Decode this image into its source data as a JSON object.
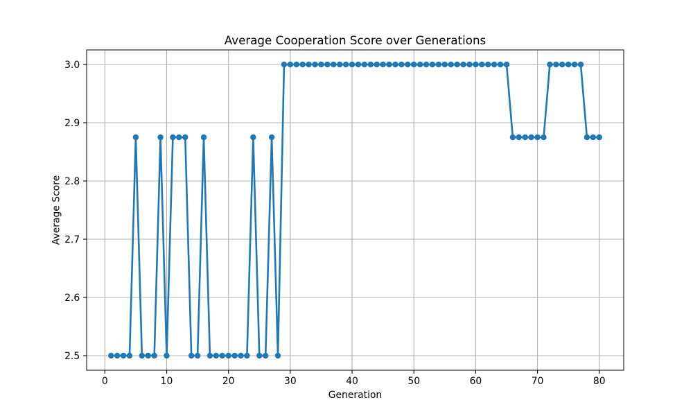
{
  "chart_data": {
    "type": "line",
    "title": "Average Cooperation Score over Generations",
    "xlabel": "Generation",
    "ylabel": "Average Score",
    "xlim": [
      -2.95,
      83.95
    ],
    "ylim": [
      2.475,
      3.025
    ],
    "xticks": [
      0,
      10,
      20,
      30,
      40,
      50,
      60,
      70,
      80
    ],
    "xtick_labels": [
      "0",
      "10",
      "20",
      "30",
      "40",
      "50",
      "60",
      "70",
      "80"
    ],
    "yticks": [
      2.5,
      2.6,
      2.7,
      2.8,
      2.9,
      3.0
    ],
    "ytick_labels": [
      "2.5",
      "2.6",
      "2.7",
      "2.8",
      "2.9",
      "3.0"
    ],
    "grid": true,
    "legend": false,
    "marker": "circle",
    "colors": {
      "line": "#1f77b4",
      "grid": "#b0b0b0",
      "frame": "#000000"
    },
    "series": [
      {
        "x": [
          1,
          2,
          3,
          4,
          5,
          6,
          7,
          8,
          9,
          10,
          11,
          12,
          13,
          14,
          15,
          16,
          17,
          18,
          19,
          20,
          21,
          22,
          23,
          24,
          25,
          26,
          27,
          28,
          29,
          30,
          31,
          32,
          33,
          34,
          35,
          36,
          37,
          38,
          39,
          40,
          41,
          42,
          43,
          44,
          45,
          46,
          47,
          48,
          49,
          50,
          51,
          52,
          53,
          54,
          55,
          56,
          57,
          58,
          59,
          60,
          61,
          62,
          63,
          64,
          65,
          66,
          67,
          68,
          69,
          70,
          71,
          72,
          73,
          74,
          75,
          76,
          77,
          78,
          79,
          80
        ],
        "y": [
          2.5,
          2.5,
          2.5,
          2.5,
          2.875,
          2.5,
          2.5,
          2.5,
          2.875,
          2.5,
          2.875,
          2.875,
          2.875,
          2.5,
          2.5,
          2.875,
          2.5,
          2.5,
          2.5,
          2.5,
          2.5,
          2.5,
          2.5,
          2.875,
          2.5,
          2.5,
          2.875,
          2.5,
          3.0,
          3.0,
          3.0,
          3.0,
          3.0,
          3.0,
          3.0,
          3.0,
          3.0,
          3.0,
          3.0,
          3.0,
          3.0,
          3.0,
          3.0,
          3.0,
          3.0,
          3.0,
          3.0,
          3.0,
          3.0,
          3.0,
          3.0,
          3.0,
          3.0,
          3.0,
          3.0,
          3.0,
          3.0,
          3.0,
          3.0,
          3.0,
          3.0,
          3.0,
          3.0,
          3.0,
          3.0,
          2.875,
          2.875,
          2.875,
          2.875,
          2.875,
          2.875,
          3.0,
          3.0,
          3.0,
          3.0,
          3.0,
          3.0,
          2.875,
          2.875,
          2.875
        ]
      }
    ]
  }
}
